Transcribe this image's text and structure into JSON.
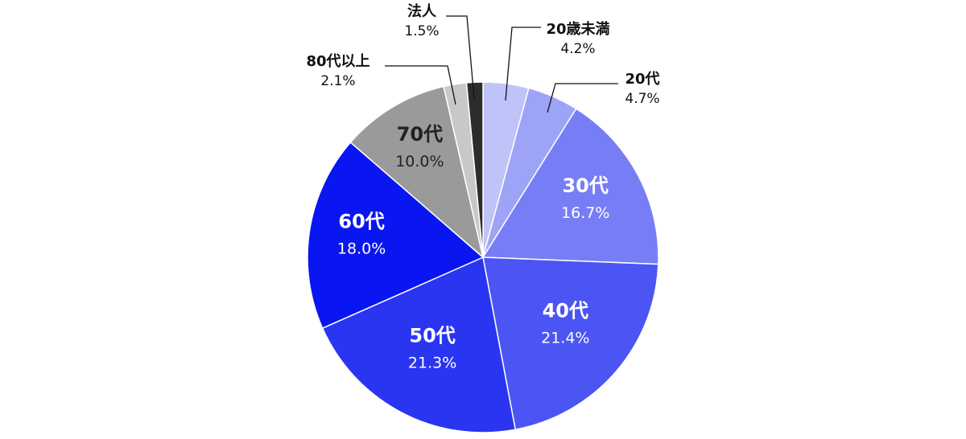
{
  "chart_data": {
    "type": "pie",
    "start": "top",
    "direction": "clockwise",
    "legend": "none",
    "slices": [
      {
        "label": "20歳未満",
        "value_label": "4.2%",
        "value": 4.2,
        "color": "#bfc3f8"
      },
      {
        "label": "20代",
        "value_label": "4.7%",
        "value": 4.7,
        "color": "#9da3f6"
      },
      {
        "label": "30代",
        "value_label": "16.7%",
        "value": 16.7,
        "color": "#777ef5"
      },
      {
        "label": "40代",
        "value_label": "21.4%",
        "value": 21.4,
        "color": "#4b55f3"
      },
      {
        "label": "50代",
        "value_label": "21.3%",
        "value": 21.3,
        "color": "#2a35f2"
      },
      {
        "label": "60代",
        "value_label": "18.0%",
        "value": 18.0,
        "color": "#0a16f1"
      },
      {
        "label": "70代",
        "value_label": "10.0%",
        "value": 10.0,
        "color": "#9a9a9a"
      },
      {
        "label": "80代以上",
        "value_label": "2.1%",
        "value": 2.1,
        "color": "#c8c8c8"
      },
      {
        "label": "法人",
        "value_label": "1.5%",
        "value": 1.5,
        "color": "#2c2c2c"
      }
    ]
  }
}
